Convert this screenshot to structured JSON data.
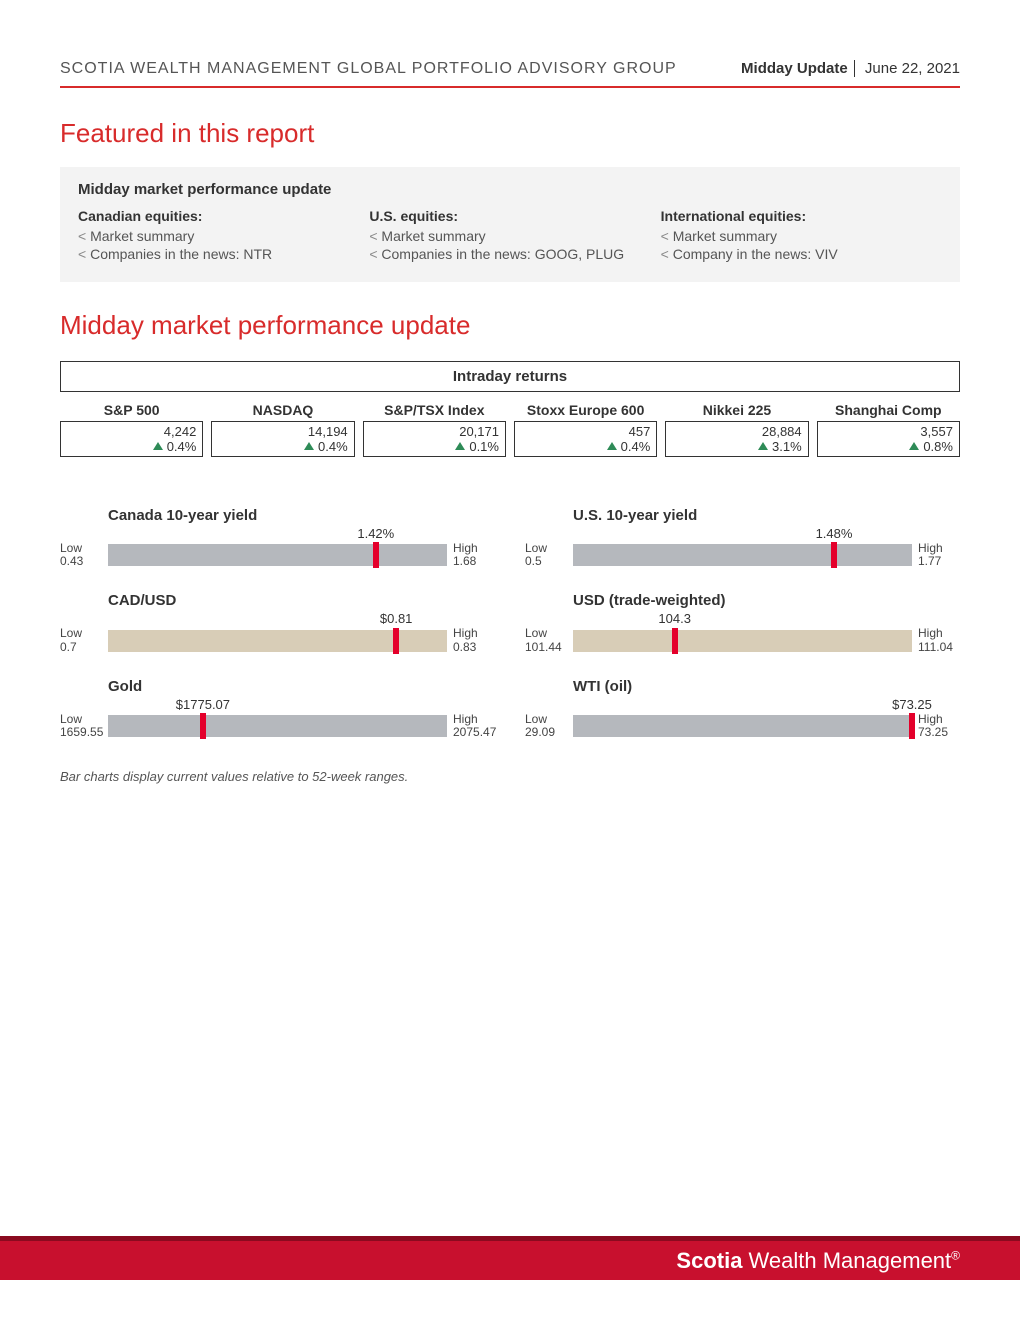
{
  "header": {
    "org": "SCOTIA WEALTH MANAGEMENT GLOBAL PORTFOLIO ADVISORY GROUP",
    "title": "Midday Update",
    "date": "June 22, 2021"
  },
  "section_featured": "Featured in this report",
  "featured": {
    "box_title": "Midday market performance update",
    "cols": [
      {
        "title": "Canadian equities:",
        "items": [
          "Market summary",
          "Companies in the news: NTR"
        ]
      },
      {
        "title": "U.S. equities:",
        "items": [
          "Market summary",
          "Companies in the news: GOOG, PLUG"
        ]
      },
      {
        "title": "International equities:",
        "items": [
          "Market summary",
          "Company in the news: VIV"
        ]
      }
    ]
  },
  "section_update": "Midday market performance update",
  "intraday_title": "Intraday returns",
  "indices": [
    {
      "name": "S&P 500",
      "value": "4,242",
      "change": "0.4%"
    },
    {
      "name": "NASDAQ",
      "value": "14,194",
      "change": "0.4%"
    },
    {
      "name": "S&P/TSX Index",
      "value": "20,171",
      "change": "0.1%"
    },
    {
      "name": "Stoxx Europe 600",
      "value": "457",
      "change": "0.4%"
    },
    {
      "name": "Nikkei 225",
      "value": "28,884",
      "change": "3.1%"
    },
    {
      "name": "Shanghai Comp",
      "value": "3,557",
      "change": "0.8%"
    }
  ],
  "range_styling": {
    "marker_color": "#e4002b",
    "bar_colors": {
      "grey": "#b5b8bd",
      "beige": "#d8cdb7"
    }
  },
  "ranges_left": [
    {
      "title": "Canada 10-year yield",
      "low_label": "Low",
      "low": "0.43",
      "high_label": "High",
      "high": "1.68",
      "current": "1.42%",
      "pct": 79,
      "color": "#b5b8bd"
    },
    {
      "title": "CAD/USD",
      "low_label": "Low",
      "low": "0.7",
      "high_label": "High",
      "high": "0.83",
      "current": "$0.81",
      "pct": 85,
      "color": "#d8cdb7"
    },
    {
      "title": "Gold",
      "low_label": "Low",
      "low": "1659.55",
      "high_label": "High",
      "high": "2075.47",
      "current": "$1775.07",
      "pct": 28,
      "color": "#b5b8bd"
    }
  ],
  "ranges_right": [
    {
      "title": "U.S. 10-year yield",
      "low_label": "Low",
      "low": "0.5",
      "high_label": "High",
      "high": "1.77",
      "current": "1.48%",
      "pct": 77,
      "color": "#b5b8bd"
    },
    {
      "title": "USD (trade-weighted)",
      "low_label": "Low",
      "low": "101.44",
      "high_label": "High",
      "high": "111.04",
      "current": "104.3",
      "pct": 30,
      "color": "#d8cdb7"
    },
    {
      "title": "WTI (oil)",
      "low_label": "Low",
      "low": "29.09",
      "high_label": "High",
      "high": "73.25",
      "current": "$73.25",
      "pct": 100,
      "color": "#b5b8bd"
    }
  ],
  "footnote": "Bar charts display current values relative to 52-week ranges.",
  "footer": {
    "brand_bold": "Scotia",
    "brand_rest": " Wealth Management"
  }
}
